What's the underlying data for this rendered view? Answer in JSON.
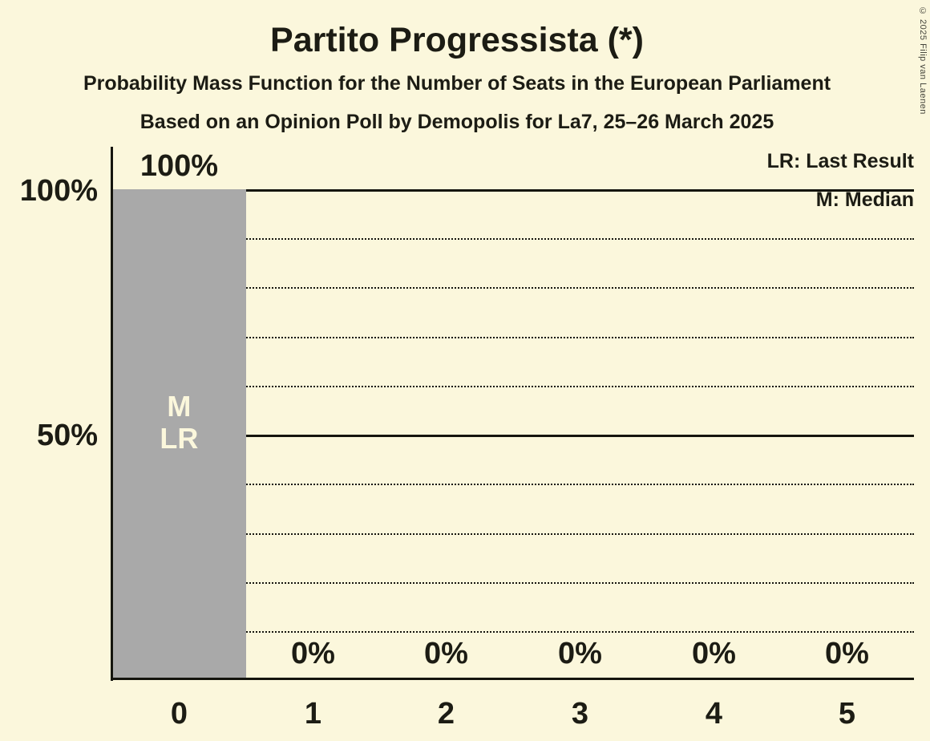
{
  "title": "Partito Progressista (*)",
  "subtitle": "Probability Mass Function for the Number of Seats in the European Parliament",
  "subsubtitle": "Based on an Opinion Poll by Demopolis for La7, 25–26 March 2025",
  "copyright": "© 2025 Filip van Laenen",
  "legend": {
    "last_result": "LR: Last Result",
    "median": "M: Median"
  },
  "y_axis": {
    "tick_100": "100%",
    "tick_50": "50%"
  },
  "x_axis": {
    "labels": [
      "0",
      "1",
      "2",
      "3",
      "4",
      "5"
    ]
  },
  "bars": {
    "value_labels": [
      "100%",
      "0%",
      "0%",
      "0%",
      "0%",
      "0%"
    ]
  },
  "bar_annotation": {
    "median": "M",
    "last_result": "LR"
  },
  "colors": {
    "background": "#FBF7DC",
    "bar": "#A9A9A9",
    "text": "#1C1C14",
    "bar_label": "#FBF7DC"
  },
  "chart_data": {
    "type": "bar",
    "title": "Partito Progressista (*)",
    "subtitle": "Probability Mass Function for the Number of Seats in the European Parliament",
    "source_line": "Based on an Opinion Poll by Demopolis for La7, 25–26 March 2025",
    "categories": [
      0,
      1,
      2,
      3,
      4,
      5
    ],
    "values": [
      100,
      0,
      0,
      0,
      0,
      0
    ],
    "value_unit": "%",
    "ylim": [
      0,
      100
    ],
    "ytick_values": [
      50,
      100
    ],
    "ytick_labels": [
      "50%",
      "100%"
    ],
    "grid": "dotted lines every 10%, solid lines at 50% and 100%",
    "legend_entries": [
      "LR: Last Result",
      "M: Median"
    ],
    "annotations": [
      {
        "category": 0,
        "markers": [
          "M",
          "LR"
        ]
      }
    ]
  }
}
